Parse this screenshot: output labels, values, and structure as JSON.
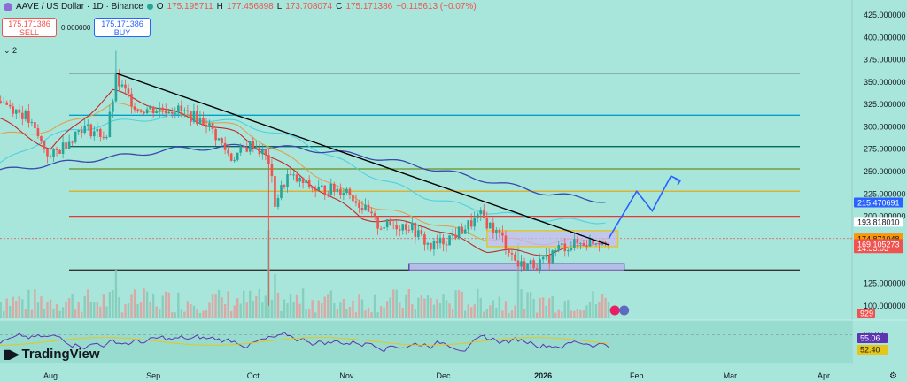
{
  "header": {
    "symbol": "AAVE / US Dollar · 1D · Binance",
    "ohlc": [
      {
        "label": "O",
        "value": "175.195711"
      },
      {
        "label": "H",
        "value": "177.456898"
      },
      {
        "label": "L",
        "value": "173.708074"
      },
      {
        "label": "C",
        "value": "175.171386"
      }
    ],
    "change": "−0.115613 (−0.07%)",
    "status_color": "#26a69a"
  },
  "trade": {
    "sell_price": "175.171386",
    "sell_label": "SELL",
    "buy_price": "175.171386",
    "buy_label": "BUY",
    "spread": "0.000000"
  },
  "indicator_toggle": "⌄ 2",
  "branding": "TradingView",
  "chart_data": {
    "type": "candlestick",
    "symbol": "AAVE/USD",
    "timeframe": "1D",
    "ylim": [
      80,
      425
    ],
    "y_ticks": [
      {
        "v": 425,
        "label": "425.000000"
      },
      {
        "v": 400,
        "label": "400.000000"
      },
      {
        "v": 375,
        "label": "375.000000"
      },
      {
        "v": 350,
        "label": "350.000000"
      },
      {
        "v": 325,
        "label": "325.000000"
      },
      {
        "v": 300,
        "label": "300.000000"
      },
      {
        "v": 275,
        "label": "275.000000"
      },
      {
        "v": 250,
        "label": "250.000000"
      },
      {
        "v": 225,
        "label": "225.000000"
      },
      {
        "v": 200,
        "label": "200.000000"
      },
      {
        "v": 125,
        "label": "125.000000"
      },
      {
        "v": 100,
        "label": "100.000000"
      }
    ],
    "x_ticks": [
      {
        "d": 0,
        "label": "Aug"
      },
      {
        "d": 33,
        "label": "Sep"
      },
      {
        "d": 65,
        "label": "Oct"
      },
      {
        "d": 95,
        "label": "Nov"
      },
      {
        "d": 126,
        "label": "Dec"
      },
      {
        "d": 158,
        "label": "2026"
      },
      {
        "d": 188,
        "label": "Feb"
      },
      {
        "d": 218,
        "label": "Mar"
      },
      {
        "d": 248,
        "label": "Apr"
      }
    ],
    "price_labels": [
      {
        "v": 215.470691,
        "text": "215.470691",
        "bg": "#2962ff",
        "fg": "#ffffff"
      },
      {
        "v": 193.81801,
        "text": "193.818010",
        "bg": "#ffffff",
        "fg": "#131722"
      },
      {
        "v": 175.171386,
        "text": "175.171386",
        "sub": "14:53:03",
        "bg": "#ef5350",
        "fg": "#ffffff"
      },
      {
        "v": 174.871048,
        "text": "174.871048",
        "bg": "#ff9800",
        "fg": "#131722"
      },
      {
        "v": 169.105273,
        "text": "169.105273",
        "bg": "#ef5350",
        "fg": "#ffffff"
      }
    ],
    "volume_label": "929",
    "rsi": {
      "values": [
        "55.06",
        "52.40"
      ],
      "levels": [
        "60.00",
        "40.00"
      ]
    },
    "horizontal_levels": [
      {
        "v": 360,
        "color": "#555555"
      },
      {
        "v": 313,
        "color": "#00a0c8"
      },
      {
        "v": 278,
        "color": "#00695c"
      },
      {
        "v": 253,
        "color": "#6b8e23"
      },
      {
        "v": 228,
        "color": "#e6a817"
      },
      {
        "v": 200,
        "color": "#e53935"
      },
      {
        "v": 140,
        "color": "#333333"
      }
    ],
    "trendline": {
      "from": {
        "d": 21,
        "v": 360
      },
      "to": {
        "d": 179,
        "v": 168
      }
    },
    "boxes": [
      {
        "d0": 140,
        "d1": 182,
        "v0": 166,
        "v1": 184,
        "fill": "#c9b9f0",
        "stroke": "#e6c619"
      },
      {
        "d0": 115,
        "d1": 184,
        "v0": 139,
        "v1": 147,
        "fill": "#b8aee8",
        "stroke": "#5e35b1"
      }
    ],
    "projection": [
      {
        "d": 179,
        "v": 175
      },
      {
        "d": 188,
        "v": 228
      },
      {
        "d": 193,
        "v": 206
      },
      {
        "d": 199,
        "v": 245
      },
      {
        "d": 202,
        "v": 240
      }
    ],
    "ma_ema_long": [
      {
        "d": -18,
        "v": 250
      },
      {
        "d": 0,
        "v": 258
      },
      {
        "d": 20,
        "v": 266
      },
      {
        "d": 40,
        "v": 275
      },
      {
        "d": 60,
        "v": 278
      },
      {
        "d": 80,
        "v": 276
      },
      {
        "d": 100,
        "v": 268
      },
      {
        "d": 120,
        "v": 255
      },
      {
        "d": 140,
        "v": 240
      },
      {
        "d": 160,
        "v": 225
      },
      {
        "d": 178,
        "v": 217
      }
    ],
    "ma_cyan": [
      {
        "d": -18,
        "v": 255
      },
      {
        "d": 0,
        "v": 290
      },
      {
        "d": 20,
        "v": 305
      },
      {
        "d": 40,
        "v": 312
      },
      {
        "d": 60,
        "v": 305
      },
      {
        "d": 80,
        "v": 285
      },
      {
        "d": 100,
        "v": 250
      },
      {
        "d": 120,
        "v": 222
      },
      {
        "d": 140,
        "v": 205
      },
      {
        "d": 160,
        "v": 196
      },
      {
        "d": 178,
        "v": 194
      }
    ],
    "ma_orange": [
      {
        "d": -18,
        "v": 290
      },
      {
        "d": 0,
        "v": 296
      },
      {
        "d": 20,
        "v": 325
      },
      {
        "d": 40,
        "v": 315
      },
      {
        "d": 60,
        "v": 300
      },
      {
        "d": 80,
        "v": 258
      },
      {
        "d": 100,
        "v": 215
      },
      {
        "d": 120,
        "v": 195
      },
      {
        "d": 140,
        "v": 175
      },
      {
        "d": 160,
        "v": 170
      },
      {
        "d": 178,
        "v": 176
      }
    ],
    "ma_red": [
      {
        "d": -18,
        "v": 312
      },
      {
        "d": 0,
        "v": 275
      },
      {
        "d": 20,
        "v": 340
      },
      {
        "d": 40,
        "v": 315
      },
      {
        "d": 60,
        "v": 292
      },
      {
        "d": 80,
        "v": 245
      },
      {
        "d": 100,
        "v": 198
      },
      {
        "d": 120,
        "v": 190
      },
      {
        "d": 140,
        "v": 162
      },
      {
        "d": 160,
        "v": 158
      },
      {
        "d": 178,
        "v": 174
      }
    ],
    "candle_keys": [
      {
        "d": -18,
        "v": 335
      },
      {
        "d": -8,
        "v": 312
      },
      {
        "d": 0,
        "v": 265
      },
      {
        "d": 10,
        "v": 300
      },
      {
        "d": 18,
        "v": 290
      },
      {
        "d": 21,
        "v": 352
      },
      {
        "d": 28,
        "v": 320
      },
      {
        "d": 40,
        "v": 320
      },
      {
        "d": 50,
        "v": 305
      },
      {
        "d": 58,
        "v": 265
      },
      {
        "d": 65,
        "v": 282
      },
      {
        "d": 70,
        "v": 262
      },
      {
        "d": 72,
        "v": 215
      },
      {
        "d": 76,
        "v": 245
      },
      {
        "d": 85,
        "v": 230
      },
      {
        "d": 95,
        "v": 230
      },
      {
        "d": 105,
        "v": 190
      },
      {
        "d": 115,
        "v": 190
      },
      {
        "d": 122,
        "v": 165
      },
      {
        "d": 130,
        "v": 180
      },
      {
        "d": 138,
        "v": 200
      },
      {
        "d": 145,
        "v": 175
      },
      {
        "d": 150,
        "v": 145
      },
      {
        "d": 158,
        "v": 148
      },
      {
        "d": 163,
        "v": 165
      },
      {
        "d": 170,
        "v": 170
      },
      {
        "d": 179,
        "v": 175
      }
    ],
    "volume_spikes": [
      {
        "d": 70,
        "v": 1.0
      },
      {
        "d": 150,
        "v": 0.85
      },
      {
        "d": 21,
        "v": 0.55
      },
      {
        "d": 72,
        "v": 0.5
      }
    ]
  }
}
